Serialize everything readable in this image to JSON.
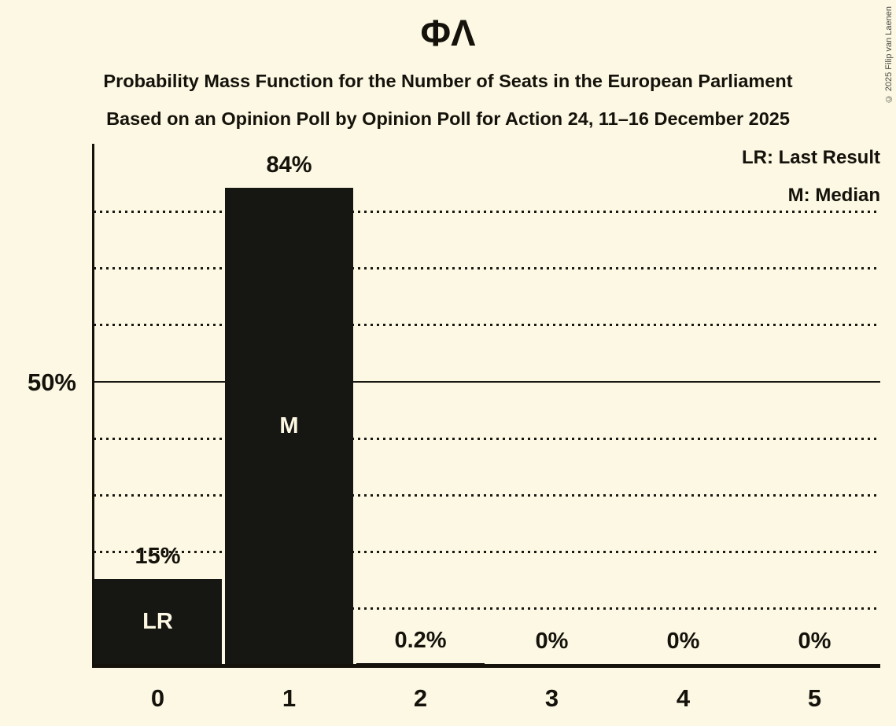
{
  "title": "ΦΛ",
  "subtitle1": "Probability Mass Function for the Number of Seats in the European Parliament",
  "subtitle2": "Based on an Opinion Poll by Opinion Poll for Action 24, 11–16 December 2025",
  "legend": {
    "lr": "LR: Last Result",
    "m": "M: Median"
  },
  "y_axis": {
    "tick_label": "50%"
  },
  "copyright": "© 2025 Filip van Laenen",
  "colors": {
    "background": "#FCF8E3",
    "bar": "#161613",
    "text": "#14120B",
    "copyright": "#4A4A45"
  },
  "chart_data": {
    "type": "bar",
    "title": "ΦΛ",
    "subtitle": "Probability Mass Function for the Number of Seats in the European Parliament — Based on an Opinion Poll by Opinion Poll for Action 24, 11–16 December 2025",
    "categories": [
      "0",
      "1",
      "2",
      "3",
      "4",
      "5"
    ],
    "values": [
      15,
      84,
      0.2,
      0,
      0,
      0
    ],
    "value_labels": [
      "15%",
      "84%",
      "0.2%",
      "0%",
      "0%",
      "0%"
    ],
    "bar_markers": [
      "LR",
      "M",
      "",
      "",
      "",
      ""
    ],
    "marker_meanings": {
      "LR": "Last Result",
      "M": "Median"
    },
    "legend": [
      "LR: Last Result",
      "M: Median"
    ],
    "xlabel": "",
    "ylabel": "",
    "ylim": [
      0,
      92
    ],
    "y_tick_labels": [
      "50%"
    ],
    "solid_gridline_at": 50,
    "dotted_gridlines_at": [
      10,
      20,
      30,
      40,
      60,
      70,
      80
    ],
    "grid": "horizontal-dotted",
    "legend_position": "top-right"
  }
}
